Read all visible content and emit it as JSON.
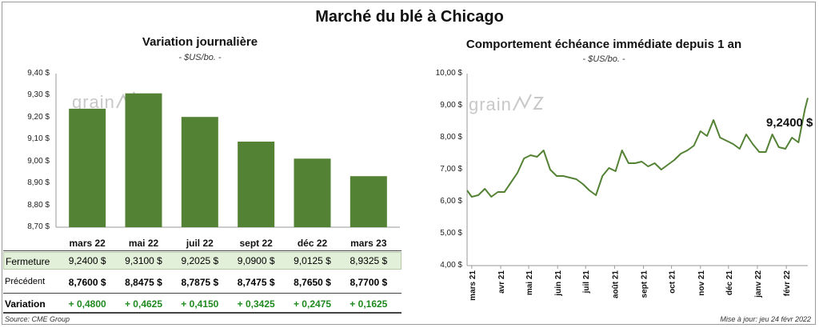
{
  "main_title": "Marché du blé à Chicago",
  "left": {
    "title": "Variation journalière",
    "unit": "- $US/bo. -",
    "logo": "grain",
    "y_ticks": [
      "9,40 $",
      "9,30 $",
      "9,20 $",
      "9,10 $",
      "9,00 $",
      "8,90 $",
      "8,80 $",
      "8,70 $"
    ],
    "table": {
      "row_labels": [
        "Fermeture",
        "Précédent",
        "Variation"
      ],
      "fermeture": [
        "9,2400  $",
        "9,3100  $",
        "9,2025  $",
        "9,0900  $",
        "9,0125  $",
        "8,9325  $"
      ],
      "precedent": [
        "8,7600  $",
        "8,8475  $",
        "8,7875  $",
        "8,7475  $",
        "8,7650  $",
        "8,7700  $"
      ],
      "variation": [
        "+ 0,4800",
        "+ 0,4625",
        "+ 0,4150",
        "+ 0,3425",
        "+ 0,2475",
        "+ 0,1625"
      ]
    }
  },
  "right": {
    "title": "Comportement  échéance immédiate depuis 1 an",
    "unit": "- $US/bo. -",
    "logo": "grain",
    "y_ticks": [
      "10,00 $",
      "9,00 $",
      "8,00 $",
      "7,00 $",
      "6,00 $",
      "5,00 $",
      "4,00 $"
    ],
    "last_label": "9,2400 $",
    "x_ticks": [
      "mars 21",
      "avr 21",
      "mai 21",
      "juin 21",
      "juil 21",
      "août 21",
      "sept 21",
      "oct 21",
      "nov 21",
      "déc 21",
      "janv 22",
      "févr 22"
    ]
  },
  "source": "Source: CME Group",
  "update": "Mise à jour: jeu 24 févr 2022",
  "colors": {
    "bar": "#548235",
    "line": "#548235",
    "fermeture_bg": "#e2efd9",
    "variation": "#1f8a1f"
  },
  "chart_data": [
    {
      "type": "bar",
      "title": "Variation journalière",
      "ylabel": "- $US/bo. -",
      "categories": [
        "mars 22",
        "mai 22",
        "juil 22",
        "sept 22",
        "déc 22",
        "mars 23"
      ],
      "values": [
        9.24,
        9.31,
        9.2025,
        9.09,
        9.0125,
        8.9325
      ],
      "ylim": [
        8.7,
        9.4
      ]
    },
    {
      "type": "line",
      "title": "Comportement  échéance immédiate depuis 1 an",
      "ylabel": "- $US/bo. -",
      "ylim": [
        4.0,
        10.0
      ],
      "x_range": [
        "2021-02-24",
        "2022-02-24"
      ],
      "x": [
        "2021-02-24",
        "2021-03-01",
        "2021-03-08",
        "2021-03-15",
        "2021-03-22",
        "2021-03-29",
        "2021-04-05",
        "2021-04-12",
        "2021-04-19",
        "2021-04-26",
        "2021-05-03",
        "2021-05-10",
        "2021-05-17",
        "2021-05-24",
        "2021-05-31",
        "2021-06-07",
        "2021-06-14",
        "2021-06-21",
        "2021-06-28",
        "2021-07-05",
        "2021-07-12",
        "2021-07-19",
        "2021-07-26",
        "2021-08-02",
        "2021-08-09",
        "2021-08-16",
        "2021-08-23",
        "2021-08-30",
        "2021-09-06",
        "2021-09-13",
        "2021-09-20",
        "2021-09-27",
        "2021-10-04",
        "2021-10-11",
        "2021-10-18",
        "2021-10-25",
        "2021-11-01",
        "2021-11-08",
        "2021-11-15",
        "2021-11-22",
        "2021-11-29",
        "2021-12-06",
        "2021-12-13",
        "2021-12-20",
        "2021-12-27",
        "2022-01-03",
        "2022-01-10",
        "2022-01-17",
        "2022-01-24",
        "2022-01-31",
        "2022-02-07",
        "2022-02-14",
        "2022-02-21",
        "2022-02-24"
      ],
      "values": [
        6.35,
        6.15,
        6.2,
        6.4,
        6.15,
        6.3,
        6.3,
        6.6,
        6.9,
        7.35,
        7.45,
        7.4,
        7.6,
        7.0,
        6.8,
        6.8,
        6.75,
        6.7,
        6.55,
        6.35,
        6.2,
        6.8,
        7.05,
        6.95,
        7.6,
        7.2,
        7.2,
        7.25,
        7.1,
        7.2,
        7.0,
        7.15,
        7.3,
        7.5,
        7.6,
        7.75,
        8.2,
        8.05,
        8.55,
        8.0,
        7.9,
        7.8,
        7.65,
        8.1,
        7.8,
        7.55,
        7.55,
        8.1,
        7.7,
        7.65,
        8.0,
        7.85,
        8.9,
        9.24
      ]
    }
  ]
}
